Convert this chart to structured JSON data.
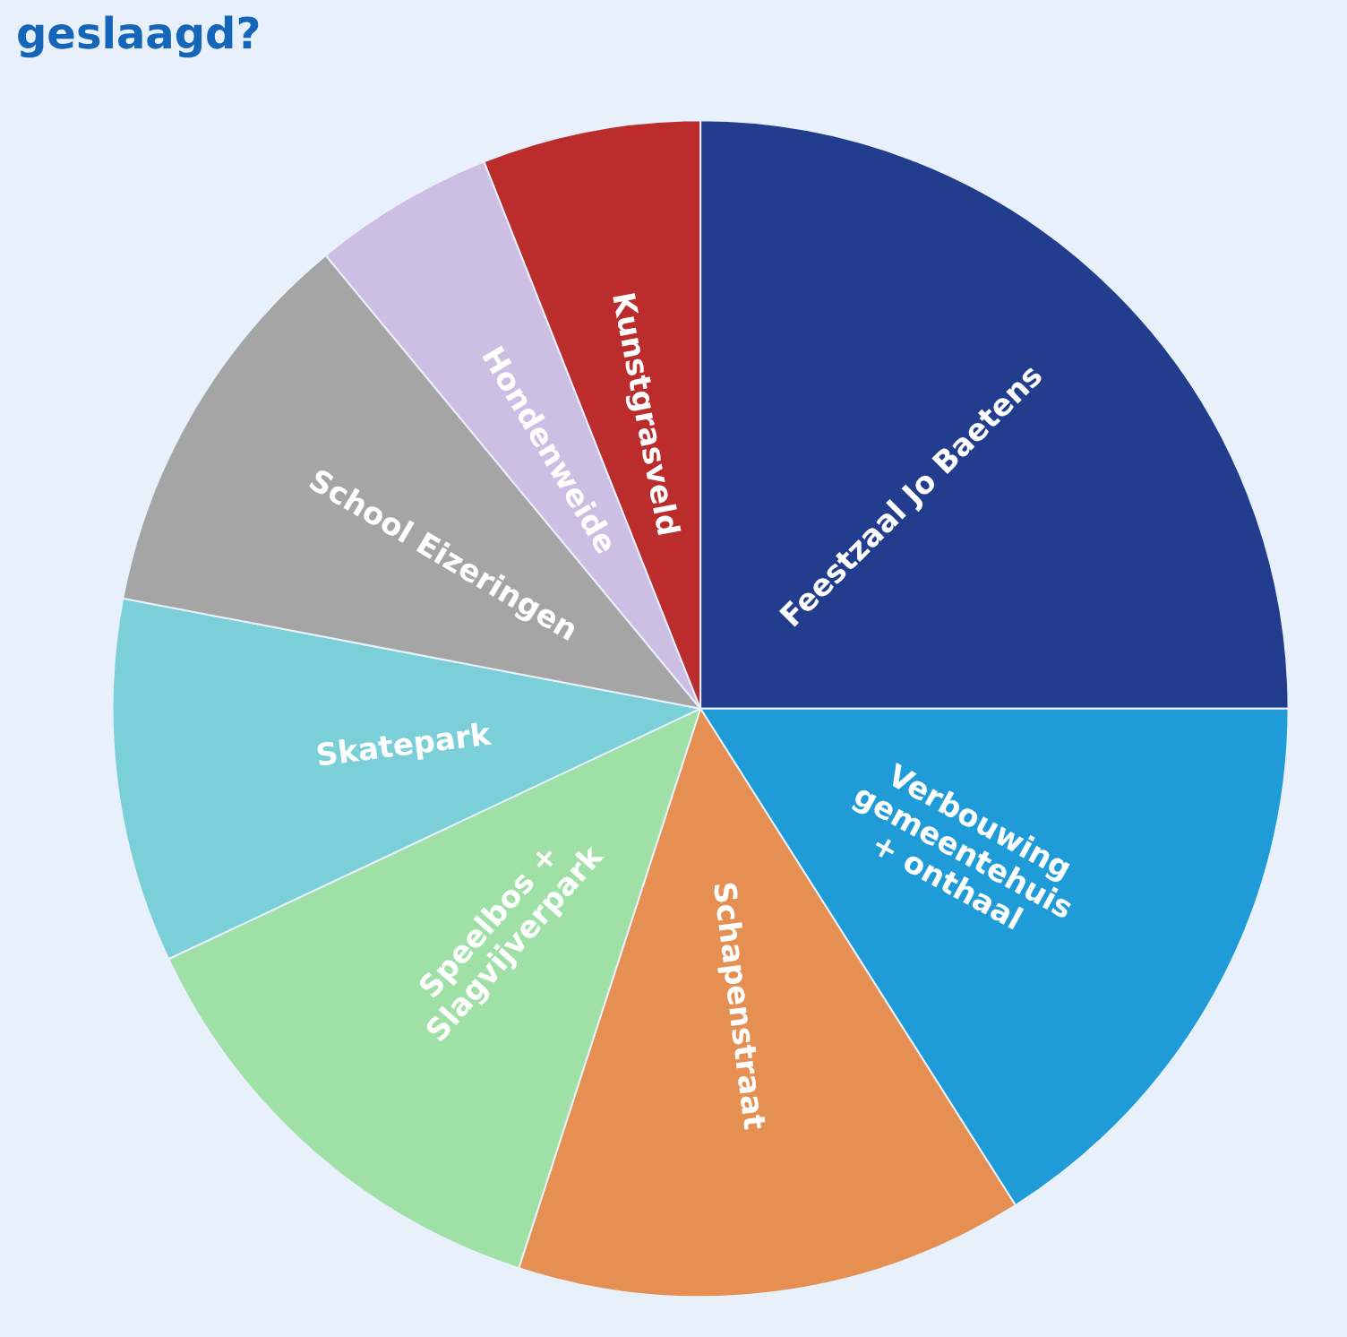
{
  "chart_data": {
    "type": "pie",
    "title": "geslaagd?",
    "categories": [
      "Feestzaal Jo Baetens",
      "Verbouwing\ngemeentehuis\n+ onthaal",
      "Schapenstraat",
      "Speelbos +\nSlagvijverpark",
      "Skatepark",
      "School Eizeringen",
      "Hondenweide",
      "Kunstgrasveld"
    ],
    "values": [
      25,
      16,
      14,
      13,
      10,
      11,
      5,
      6
    ],
    "colors": [
      "#233d8e",
      "#1f9bd7",
      "#e58f52",
      "#9fe0a6",
      "#7bcfd8",
      "#a5a5a5",
      "#cdbfe3",
      "#bb2c2c"
    ],
    "legend": false
  }
}
